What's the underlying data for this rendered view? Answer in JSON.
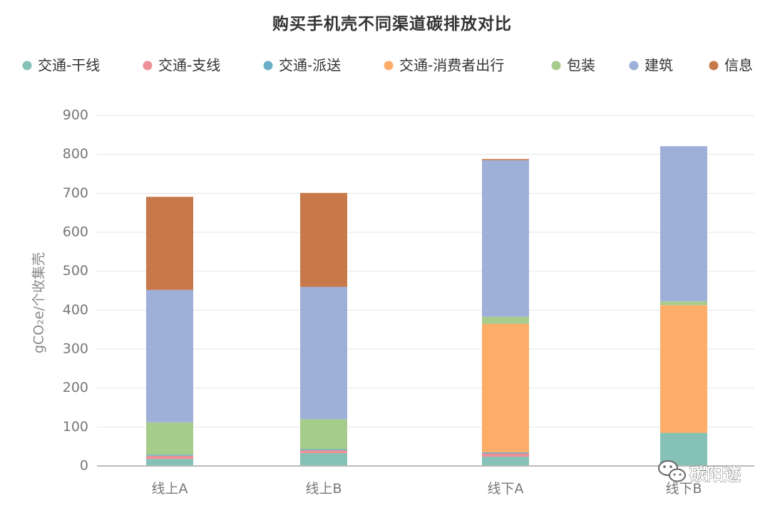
{
  "chart_data": {
    "type": "bar",
    "stacked": true,
    "title": "购买手机壳不同渠道碳排放对比",
    "ylabel": "gCO₂e/个收集壳",
    "xlabel": "",
    "ylim": [
      0,
      900
    ],
    "yticks": [
      0,
      100,
      200,
      300,
      400,
      500,
      600,
      700,
      800,
      900
    ],
    "grid": true,
    "legend_position": "top",
    "categories": [
      "线上A",
      "线上B",
      "线下A",
      "线下B"
    ],
    "series": [
      {
        "name": "交通-干线",
        "color": "#85c1b6",
        "values": [
          18,
          33,
          24,
          85
        ]
      },
      {
        "name": "交通-支线",
        "color": "#ef8f97",
        "values": [
          8,
          7,
          8,
          0
        ]
      },
      {
        "name": "交通-派送",
        "color": "#6cadc7",
        "values": [
          3,
          3,
          3,
          0
        ]
      },
      {
        "name": "交通-消费者出行",
        "color": "#fdad68",
        "values": [
          0,
          0,
          330,
          328
        ]
      },
      {
        "name": "包装",
        "color": "#a6cc8c",
        "values": [
          83,
          77,
          18,
          10
        ]
      },
      {
        "name": "建筑",
        "color": "#9fb0d8",
        "values": [
          340,
          340,
          402,
          398
        ]
      },
      {
        "name": "信息",
        "color": "#c7794a",
        "values": [
          239,
          241,
          3,
          0
        ]
      }
    ]
  },
  "watermark": {
    "text": "碳阳迹",
    "icon": "wechat-icon"
  }
}
